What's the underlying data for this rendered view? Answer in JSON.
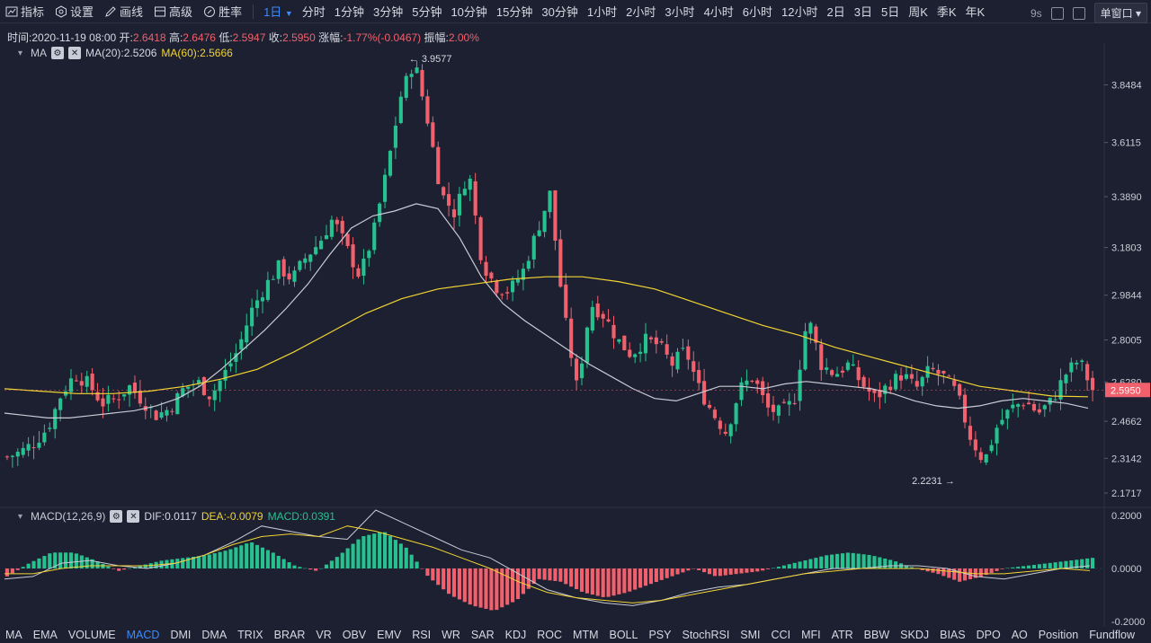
{
  "toolbar": {
    "tools": [
      {
        "label": "指标",
        "icon": "indicator-icon"
      },
      {
        "label": "设置",
        "icon": "settings-icon"
      },
      {
        "label": "画线",
        "icon": "draw-line-icon"
      },
      {
        "label": "高级",
        "icon": "advanced-icon"
      },
      {
        "label": "胜率",
        "icon": "win-rate-icon"
      }
    ],
    "active_period": "1日",
    "periods": [
      "分时",
      "1分钟",
      "3分钟",
      "5分钟",
      "10分钟",
      "15分钟",
      "30分钟",
      "1小时",
      "2小时",
      "3小时",
      "4小时",
      "6小时",
      "12小时",
      "2日",
      "3日",
      "5日",
      "周K",
      "季K",
      "年K"
    ],
    "refresh_label": "9s",
    "window_select": "单窗口"
  },
  "info": {
    "time_label": "时间:",
    "time": "2020-11-19 08:00",
    "open_label": "开:",
    "open": "2.6418",
    "high_label": "高:",
    "high": "2.6476",
    "low_label": "低:",
    "low": "2.5947",
    "close_label": "收:",
    "close": "2.5950",
    "change_label": "涨幅:",
    "change": "-1.77%(-0.0467)",
    "amplitude_label": "振幅:",
    "amplitude": "2.00%"
  },
  "ma_legend": {
    "name": "MA",
    "ma20": "MA(20):2.5206",
    "ma60": "MA(60):2.5666"
  },
  "macd_legend": {
    "name": "MACD(12,26,9)",
    "dif": "DIF:0.0117",
    "dea": "DEA:-0.0079",
    "macd": "MACD:0.0391"
  },
  "bottom_tabs": [
    "MA",
    "EMA",
    "VOLUME",
    "MACD",
    "DMI",
    "DMA",
    "TRIX",
    "BRAR",
    "VR",
    "OBV",
    "EMV",
    "RSI",
    "WR",
    "SAR",
    "KDJ",
    "ROC",
    "MTM",
    "BOLL",
    "PSY",
    "StochRSI",
    "SMI",
    "CCI",
    "MFI",
    "ATR",
    "BBW",
    "SKDJ",
    "BIAS",
    "DPO",
    "AO",
    "Position",
    "Fundflow"
  ],
  "active_tab": "MACD",
  "colors": {
    "up": "#26c18f",
    "down": "#f0616d",
    "ma20": "#c9ccd6",
    "ma60": "#f2d433",
    "bg": "#1c2030",
    "accent": "#3d8bfd"
  },
  "chart_data": {
    "type": "candlestick",
    "price_axis_ticks": [
      "3.8484",
      "3.6115",
      "3.3890",
      "3.1803",
      "2.9844",
      "2.8005",
      "2.6280",
      "2.4662",
      "2.3142",
      "2.1717"
    ],
    "price_range": [
      2.12,
      4.02
    ],
    "current_price": "2.5950",
    "max_marker": "3.9577",
    "min_marker": "2.2231",
    "close_path": [
      2.32,
      2.34,
      2.38,
      2.44,
      2.58,
      2.66,
      2.62,
      2.54,
      2.56,
      2.61,
      2.55,
      2.49,
      2.52,
      2.6,
      2.63,
      2.57,
      2.66,
      2.76,
      2.92,
      3.02,
      3.1,
      3.05,
      3.14,
      3.2,
      3.3,
      3.18,
      3.06,
      3.24,
      3.5,
      3.8,
      3.95,
      3.7,
      3.4,
      3.32,
      3.5,
      3.12,
      3.02,
      3.0,
      3.08,
      3.24,
      3.4,
      2.92,
      2.6,
      2.95,
      2.9,
      2.8,
      2.74,
      2.8,
      2.78,
      2.7,
      2.76,
      2.6,
      2.5,
      2.42,
      2.6,
      2.65,
      2.52,
      2.5,
      2.55,
      2.9,
      2.7,
      2.66,
      2.7,
      2.62,
      2.56,
      2.62,
      2.66,
      2.6,
      2.68,
      2.65,
      2.58,
      2.4,
      2.3,
      2.45,
      2.52,
      2.55,
      2.5,
      2.55,
      2.66,
      2.72,
      2.595
    ],
    "ma20_path": [
      2.5,
      2.49,
      2.48,
      2.48,
      2.49,
      2.5,
      2.51,
      2.53,
      2.56,
      2.61,
      2.68,
      2.76,
      2.84,
      2.93,
      3.03,
      3.15,
      3.26,
      3.31,
      3.33,
      3.36,
      3.34,
      3.22,
      3.06,
      2.95,
      2.88,
      2.82,
      2.76,
      2.7,
      2.65,
      2.6,
      2.56,
      2.55,
      2.58,
      2.61,
      2.61,
      2.6,
      2.62,
      2.63,
      2.62,
      2.61,
      2.6,
      2.58,
      2.55,
      2.53,
      2.52,
      2.53,
      2.55,
      2.56,
      2.55,
      2.54,
      2.52
    ],
    "ma60_path": [
      2.6,
      2.59,
      2.58,
      2.58,
      2.59,
      2.61,
      2.64,
      2.68,
      2.75,
      2.83,
      2.91,
      2.97,
      3.01,
      3.03,
      3.05,
      3.06,
      3.06,
      3.04,
      3.01,
      2.96,
      2.91,
      2.86,
      2.82,
      2.77,
      2.73,
      2.69,
      2.65,
      2.61,
      2.59,
      2.57,
      2.567
    ],
    "macd_axis_ticks": [
      "0.2000",
      "0.0000",
      "-0.2000"
    ],
    "macd_range": [
      -0.22,
      0.22
    ],
    "macd_hist": [
      -0.03,
      0.02,
      0.06,
      0.06,
      0.03,
      -0.01,
      0.01,
      0.03,
      0.04,
      0.05,
      0.07,
      0.1,
      0.06,
      0.01,
      -0.01,
      0.05,
      0.12,
      0.14,
      0.08,
      -0.03,
      -0.1,
      -0.14,
      -0.16,
      -0.12,
      -0.04,
      -0.05,
      -0.09,
      -0.11,
      -0.09,
      -0.06,
      -0.03,
      0.0,
      -0.03,
      -0.02,
      -0.01,
      0.01,
      0.03,
      0.05,
      0.06,
      0.05,
      0.03,
      0.0,
      -0.02,
      -0.05,
      -0.03,
      0.0,
      0.01,
      0.02,
      0.03,
      0.04
    ],
    "dif_path": [
      -0.04,
      -0.03,
      0.02,
      0.03,
      0.01,
      0.0,
      0.02,
      0.05,
      0.1,
      0.16,
      0.14,
      0.12,
      0.11,
      0.22,
      0.17,
      0.12,
      0.07,
      0.04,
      -0.02,
      -0.08,
      -0.11,
      -0.13,
      -0.14,
      -0.12,
      -0.09,
      -0.07,
      -0.06,
      -0.04,
      -0.02,
      0.0,
      0.0,
      0.01,
      0.01,
      0.0,
      -0.03,
      -0.04,
      -0.02,
      0.0,
      0.01
    ],
    "dea_path": [
      -0.02,
      -0.02,
      0.0,
      0.01,
      0.01,
      0.01,
      0.02,
      0.05,
      0.09,
      0.12,
      0.13,
      0.12,
      0.16,
      0.14,
      0.11,
      0.08,
      0.04,
      0.0,
      -0.05,
      -0.09,
      -0.11,
      -0.12,
      -0.13,
      -0.12,
      -0.1,
      -0.08,
      -0.06,
      -0.04,
      -0.02,
      -0.01,
      0.0,
      0.0,
      0.0,
      -0.01,
      -0.02,
      -0.02,
      -0.01,
      0.0,
      -0.008
    ]
  }
}
